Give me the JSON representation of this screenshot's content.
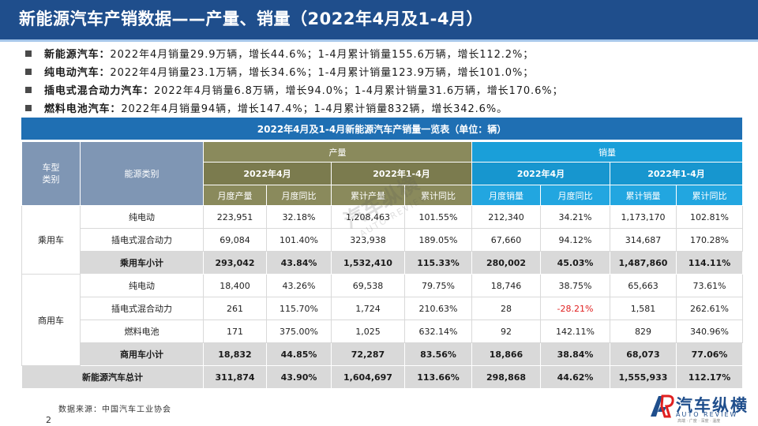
{
  "header": {
    "title": "新能源汽车产销数据——产量、销量（2022年4月及1-4月）"
  },
  "summary": [
    {
      "name": "新能源汽车：",
      "text": "2022年4月销量29.9万辆，增长44.6%；1-4月累计销量155.6万辆，增长112.2%；"
    },
    {
      "name": "纯电动汽车：",
      "text": "2022年4月销量23.1万辆，增长34.6%；1-4月累计销量123.9万辆，增长101.0%；"
    },
    {
      "name": "插电式混合动力汽车：",
      "text": "2022年4月销量6.8万辆，增长94.0%；1-4月累计销量31.6万辆，增长170.6%；"
    },
    {
      "name": "燃料电池汽车：",
      "text": "2022年4月销量94辆，增长147.4%；1-4月累计销量832辆，增长342.6%。"
    }
  ],
  "table": {
    "title": "2022年4月及1-4月新能源汽车产销量一览表（单位：辆）",
    "headers": {
      "vehicle_type": "车型\n类别",
      "energy_type": "能源类别",
      "production": "产量",
      "sales": "销量",
      "apr": "2022年4月",
      "ytd": "2022年1-4月",
      "prod_cols": [
        "月度产量",
        "月度同比",
        "累计产量",
        "累计同比"
      ],
      "sales_cols": [
        "月度销量",
        "月度同比",
        "累计销量",
        "累计同比"
      ]
    },
    "groups": [
      {
        "label": "乘用车"
      },
      {
        "label": "商用车"
      }
    ],
    "rows": [
      {
        "name": "纯电动",
        "values": [
          "223,951",
          "32.18%",
          "1,208,463",
          "101.55%",
          "212,340",
          "34.21%",
          "1,173,170",
          "102.81%"
        ]
      },
      {
        "name": "插电式混合动力",
        "values": [
          "69,084",
          "101.40%",
          "323,938",
          "189.05%",
          "67,660",
          "94.12%",
          "314,687",
          "170.28%"
        ]
      },
      {
        "name": "乘用车小计",
        "values": [
          "293,042",
          "43.84%",
          "1,532,410",
          "115.33%",
          "280,002",
          "45.03%",
          "1,487,860",
          "114.11%"
        ]
      },
      {
        "name": "纯电动",
        "values": [
          "18,400",
          "43.26%",
          "69,538",
          "79.75%",
          "18,746",
          "38.75%",
          "65,663",
          "73.61%"
        ]
      },
      {
        "name": "插电式混合动力",
        "values": [
          "261",
          "115.70%",
          "1,724",
          "210.63%",
          "28",
          "-28.21%",
          "1,581",
          "262.61%"
        ]
      },
      {
        "name": "燃料电池",
        "values": [
          "171",
          "375.00%",
          "1,025",
          "632.14%",
          "92",
          "142.11%",
          "829",
          "340.96%"
        ]
      },
      {
        "name": "商用车小计",
        "values": [
          "18,832",
          "44.85%",
          "72,287",
          "83.56%",
          "18,866",
          "38.84%",
          "68,073",
          "77.06%"
        ]
      }
    ],
    "total": {
      "name": "新能源汽车总计",
      "values": [
        "311,874",
        "43.90%",
        "1,604,697",
        "113.66%",
        "298,868",
        "44.62%",
        "1,555,933",
        "112.17%"
      ]
    }
  },
  "watermark": {
    "text": "汽车纵横",
    "sub": "AUTO REVIEW"
  },
  "footer": {
    "source": "数据来源：中国汽车工业协会",
    "page": "2"
  },
  "logo": {
    "cn": "汽车纵横",
    "en": "AUTO REVIEW",
    "slogan": "高端 · 广度 · 深度 · 温度"
  },
  "colors": {
    "title_bg": "#1f4e8c",
    "table_title_bg": "#1f6fb3",
    "production_header": "#8a8a5c",
    "sales_header": "#1a9fd9",
    "category_header": "#7f96b4",
    "negative": "#e02020"
  }
}
